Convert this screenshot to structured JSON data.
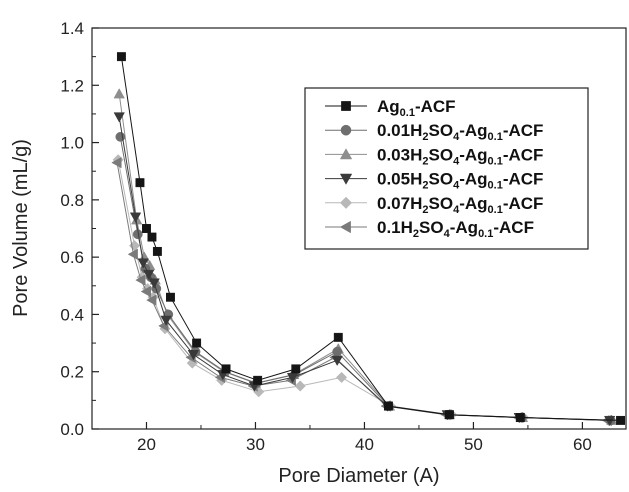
{
  "chart_data": {
    "type": "line",
    "title": "",
    "xlabel": "Pore Diameter (A)",
    "ylabel": "Pore Volume (mL/g)",
    "xlim": [
      15,
      64
    ],
    "ylim": [
      0.0,
      1.4
    ],
    "xticks": [
      "20",
      "30",
      "40",
      "50",
      "60"
    ],
    "yticks": [
      "0.0",
      "0.2",
      "0.4",
      "0.6",
      "0.8",
      "1.0",
      "1.2",
      "1.4"
    ],
    "grid": false,
    "legend_position": "top-right",
    "series": [
      {
        "name": "Ag0.1-ACF",
        "legend": {
          "parts": [
            {
              "t": "Ag",
              "s": ""
            },
            {
              "t": "0.1",
              "s": "sub"
            },
            {
              "t": "-ACF",
              "s": ""
            }
          ]
        },
        "marker": "square",
        "color": "#151515",
        "x": [
          17.7,
          19.4,
          20.0,
          20.5,
          21.0,
          22.2,
          24.6,
          27.3,
          30.2,
          33.7,
          37.6,
          42.2,
          47.8,
          54.3,
          63.5
        ],
        "y": [
          1.3,
          0.86,
          0.7,
          0.67,
          0.62,
          0.46,
          0.3,
          0.21,
          0.17,
          0.21,
          0.32,
          0.08,
          0.05,
          0.04,
          0.03
        ]
      },
      {
        "name": "0.01H2SO4-Ag0.1-ACF",
        "legend": {
          "parts": [
            {
              "t": "0.01H",
              "s": ""
            },
            {
              "t": "2",
              "s": "sub"
            },
            {
              "t": "SO",
              "s": ""
            },
            {
              "t": "4",
              "s": "sub"
            },
            {
              "t": "-Ag",
              "s": ""
            },
            {
              "t": "0.1",
              "s": "sub"
            },
            {
              "t": "-ACF",
              "s": ""
            }
          ]
        },
        "marker": "circle",
        "color": "#6e6e6e",
        "x": [
          17.6,
          19.2,
          19.9,
          20.4,
          20.9,
          22.0,
          24.5,
          27.2,
          30.1,
          33.6,
          37.5,
          42.2,
          47.7,
          54.4,
          62.6
        ],
        "y": [
          1.02,
          0.68,
          0.56,
          0.53,
          0.49,
          0.4,
          0.27,
          0.2,
          0.16,
          0.19,
          0.27,
          0.08,
          0.05,
          0.04,
          0.03
        ]
      },
      {
        "name": "0.03H2SO4-Ag0.1-ACF",
        "legend": {
          "parts": [
            {
              "t": "0.03H",
              "s": ""
            },
            {
              "t": "2",
              "s": "sub"
            },
            {
              "t": "SO",
              "s": ""
            },
            {
              "t": "4",
              "s": "sub"
            },
            {
              "t": "-Ag",
              "s": ""
            },
            {
              "t": "0.1",
              "s": "sub"
            },
            {
              "t": "-ACF",
              "s": ""
            }
          ]
        },
        "marker": "triangle-up",
        "color": "#8e8e8e",
        "x": [
          17.5,
          19.1,
          19.8,
          20.3,
          20.8,
          21.9,
          24.4,
          27.1,
          30.0,
          33.5,
          37.6,
          42.3,
          47.8,
          54.5,
          62.7
        ],
        "y": [
          1.17,
          0.73,
          0.6,
          0.57,
          0.52,
          0.4,
          0.27,
          0.2,
          0.16,
          0.19,
          0.28,
          0.08,
          0.05,
          0.04,
          0.03
        ]
      },
      {
        "name": "0.05H2SO4-Ag0.1-ACF",
        "legend": {
          "parts": [
            {
              "t": "0.05H",
              "s": ""
            },
            {
              "t": "2",
              "s": "sub"
            },
            {
              "t": "SO",
              "s": ""
            },
            {
              "t": "4",
              "s": "sub"
            },
            {
              "t": "-Ag",
              "s": ""
            },
            {
              "t": "0.1",
              "s": "sub"
            },
            {
              "t": "-ACF",
              "s": ""
            }
          ]
        },
        "marker": "triangle-down",
        "color": "#3a3a3a",
        "x": [
          17.5,
          19.0,
          19.7,
          20.2,
          20.7,
          21.8,
          24.3,
          27.0,
          29.9,
          33.4,
          37.5,
          42.1,
          47.6,
          54.2,
          62.5
        ],
        "y": [
          1.09,
          0.74,
          0.58,
          0.54,
          0.51,
          0.38,
          0.26,
          0.19,
          0.15,
          0.18,
          0.24,
          0.08,
          0.05,
          0.04,
          0.03
        ]
      },
      {
        "name": "0.07H2SO4-Ag0.1-ACF",
        "legend": {
          "parts": [
            {
              "t": "0.07H",
              "s": ""
            },
            {
              "t": "2",
              "s": "sub"
            },
            {
              "t": "SO",
              "s": ""
            },
            {
              "t": "4",
              "s": "sub"
            },
            {
              "t": "-Ag",
              "s": ""
            },
            {
              "t": "0.1",
              "s": "sub"
            },
            {
              "t": "-ACF",
              "s": ""
            }
          ]
        },
        "marker": "diamond",
        "color": "#b8b8b8",
        "x": [
          17.4,
          18.9,
          19.6,
          20.1,
          20.6,
          21.7,
          24.2,
          26.9,
          30.3,
          34.1,
          37.9,
          42.4,
          48.0,
          54.6,
          62.4
        ],
        "y": [
          0.94,
          0.64,
          0.53,
          0.49,
          0.46,
          0.35,
          0.23,
          0.17,
          0.13,
          0.15,
          0.18,
          0.08,
          0.05,
          0.04,
          0.03
        ]
      },
      {
        "name": "0.1H2SO4-Ag0.1-ACF",
        "legend": {
          "parts": [
            {
              "t": "0.1H",
              "s": ""
            },
            {
              "t": "2",
              "s": "sub"
            },
            {
              "t": "SO",
              "s": ""
            },
            {
              "t": "4",
              "s": "sub"
            },
            {
              "t": "-Ag",
              "s": ""
            },
            {
              "t": "0.1",
              "s": "sub"
            },
            {
              "t": "-ACF",
              "s": ""
            }
          ]
        },
        "marker": "triangle-left",
        "color": "#7a7a7a",
        "x": [
          17.3,
          18.8,
          19.5,
          20.0,
          20.5,
          21.6,
          24.1,
          26.8,
          29.8,
          33.3,
          37.3,
          42.0,
          47.5,
          54.1,
          62.3
        ],
        "y": [
          0.93,
          0.61,
          0.52,
          0.48,
          0.45,
          0.36,
          0.25,
          0.18,
          0.15,
          0.17,
          0.25,
          0.08,
          0.05,
          0.04,
          0.03
        ]
      }
    ]
  }
}
